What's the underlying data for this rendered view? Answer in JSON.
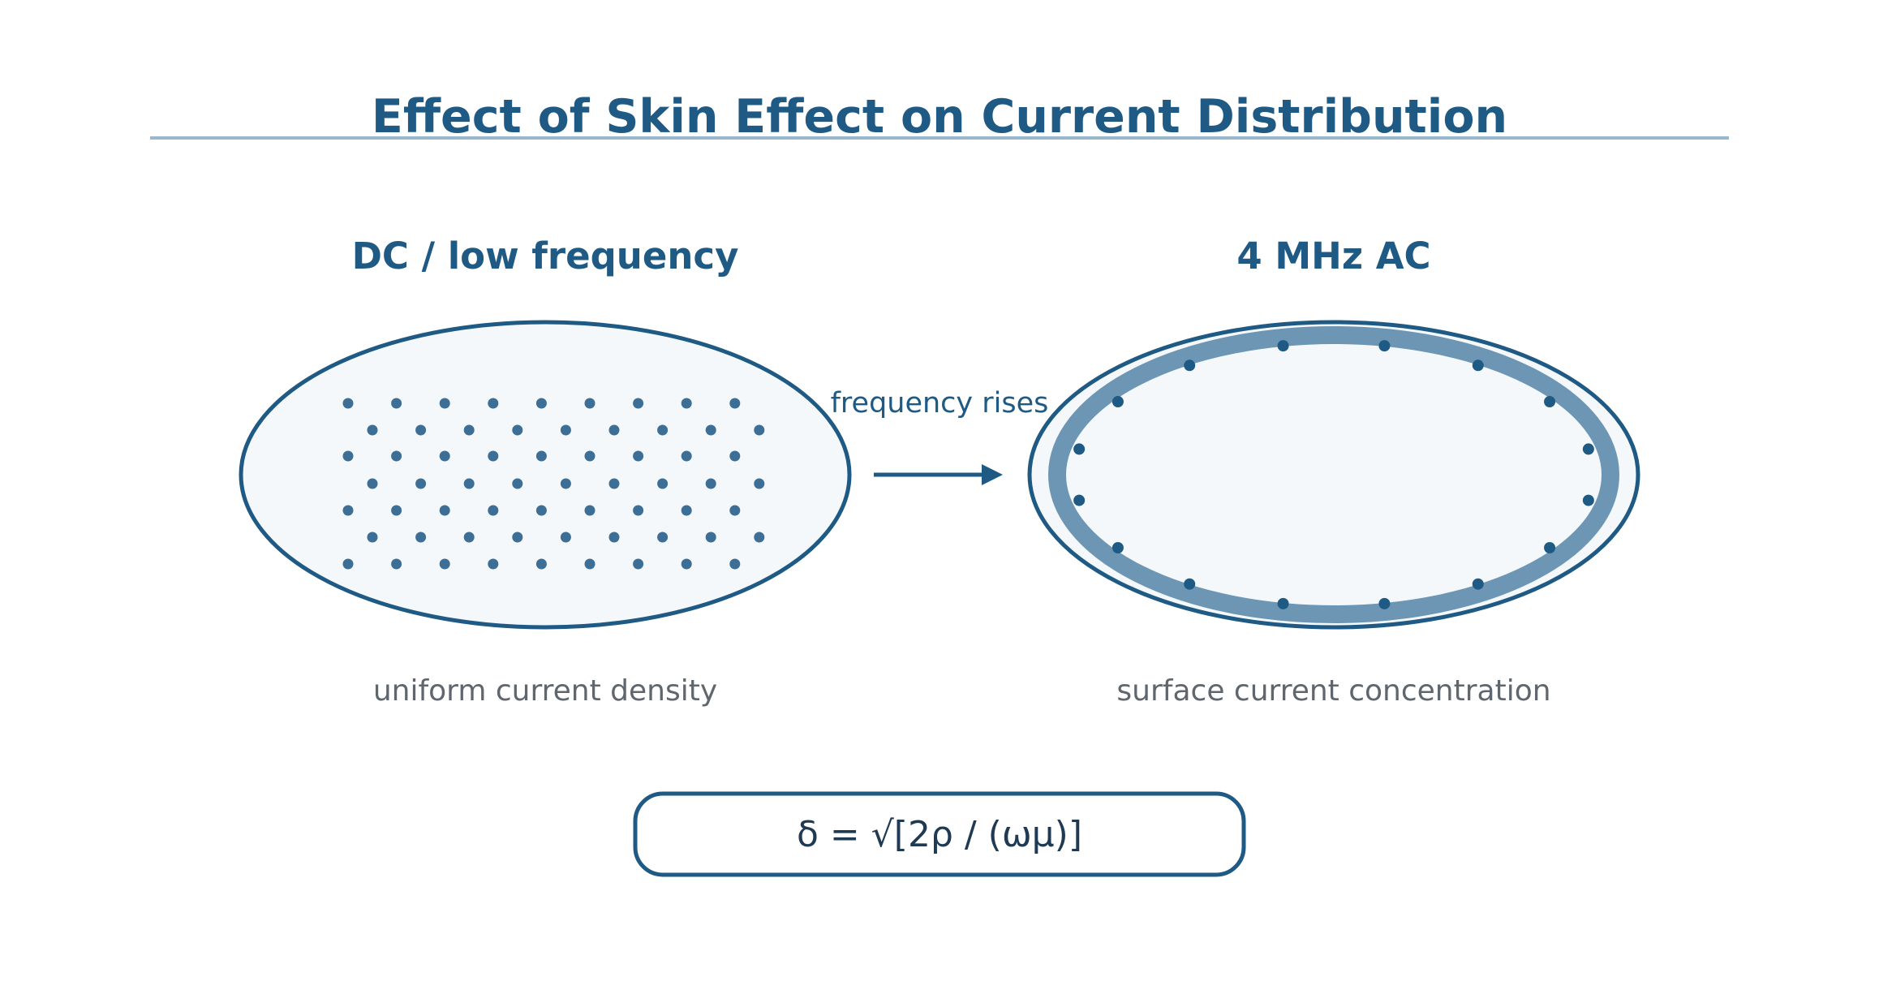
{
  "title": "Effect of Skin Effect on Current Distribution",
  "left_panel": {
    "heading": "DC / low frequency",
    "caption": "uniform current density"
  },
  "arrow_label": "frequency rises",
  "right_panel": {
    "heading": "4 MHz AC",
    "caption": "surface current concentration"
  },
  "formula": "δ = √[2ρ / (ωμ)]",
  "colors": {
    "primary": "#1f5a85",
    "ring": "#6d96b5",
    "fill": "#f4f8fb",
    "caption": "#5f666d",
    "rule": "#9ab8cd",
    "dots_left": "#3c6e96"
  }
}
